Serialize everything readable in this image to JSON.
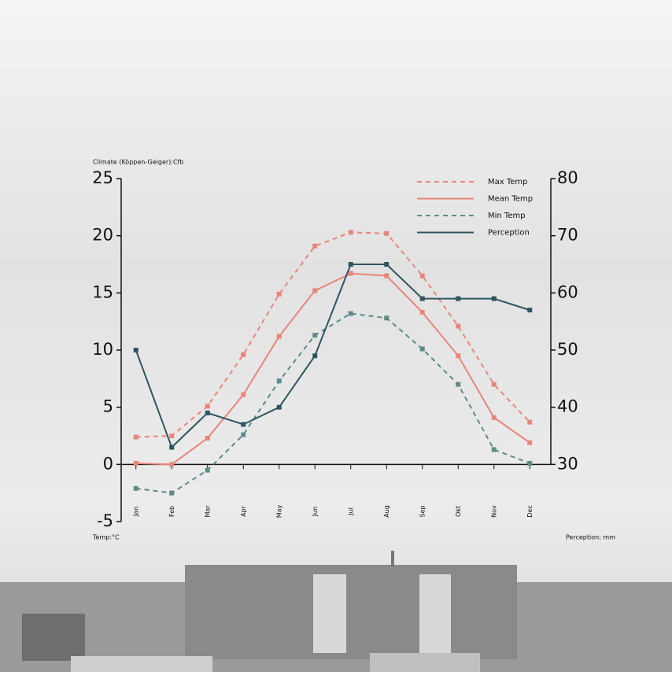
{
  "chart_data": {
    "type": "line",
    "title": "Climate (Köppen-Geiger):Cfb",
    "ylabel": "Temp:°C",
    "y2label": "Perception: mm",
    "categories": [
      "Jan",
      "Feb",
      "Mar",
      "Apr",
      "May",
      "Jun",
      "Jul",
      "Aug",
      "Sep",
      "Okt",
      "Nov",
      "Dec"
    ],
    "series": [
      {
        "name": "Max Temp",
        "color": "#e8857a",
        "dashed": true,
        "values": [
          2.4,
          2.5,
          5.1,
          9.6,
          14.9,
          19.1,
          20.3,
          20.2,
          16.5,
          12.1,
          7.0,
          3.7
        ]
      },
      {
        "name": "Mean Temp",
        "color": "#e8857a",
        "dashed": false,
        "values": [
          0.1,
          0,
          2.3,
          6.1,
          11.2,
          15.2,
          16.7,
          16.5,
          13.3,
          9.5,
          4.1,
          1.9
        ]
      },
      {
        "name": "Min Temp",
        "color": "#5e8a8a",
        "dashed": true,
        "values": [
          -2.1,
          -2.5,
          -0.5,
          2.6,
          7.3,
          11.3,
          13.2,
          12.8,
          10.1,
          7.0,
          1.3,
          0.1
        ]
      },
      {
        "name": "Perception",
        "color": "#2e5560",
        "dashed": false,
        "axis": "y2",
        "values": [
          50,
          33,
          39,
          37,
          40,
          49,
          65,
          65,
          59,
          59,
          59,
          57
        ]
      }
    ],
    "ylim": [
      -5,
      25
    ],
    "yticks": [
      -5,
      0,
      5,
      10,
      15,
      20,
      25
    ],
    "y2lim": [
      20,
      80
    ],
    "y2ticks": [
      30,
      40,
      50,
      60,
      70,
      80
    ],
    "legend": "upper right"
  }
}
